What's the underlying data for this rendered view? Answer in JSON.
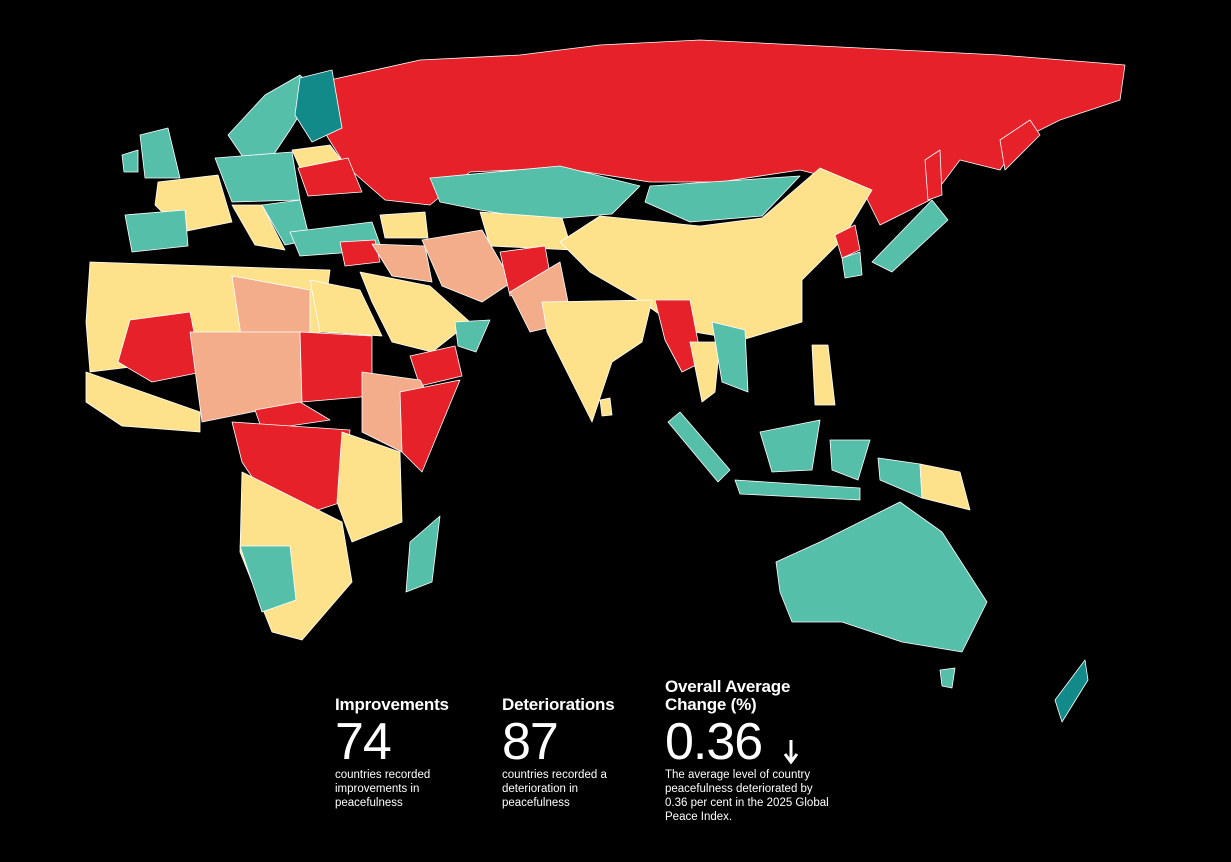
{
  "stats": [
    {
      "title": "Improvements",
      "value": 74,
      "description": "countries recorded improvements in peacefulness"
    },
    {
      "title": "Deteriorations",
      "value": 87,
      "description": "countries recorded a deterioration in peacefulness"
    },
    {
      "title": "Overall Average Change (%)",
      "value": 0.36,
      "description": "The average level of country peacefulness deteriorated by 0.36 per cent in the 2025 Global Peace Index."
    }
  ]
}
